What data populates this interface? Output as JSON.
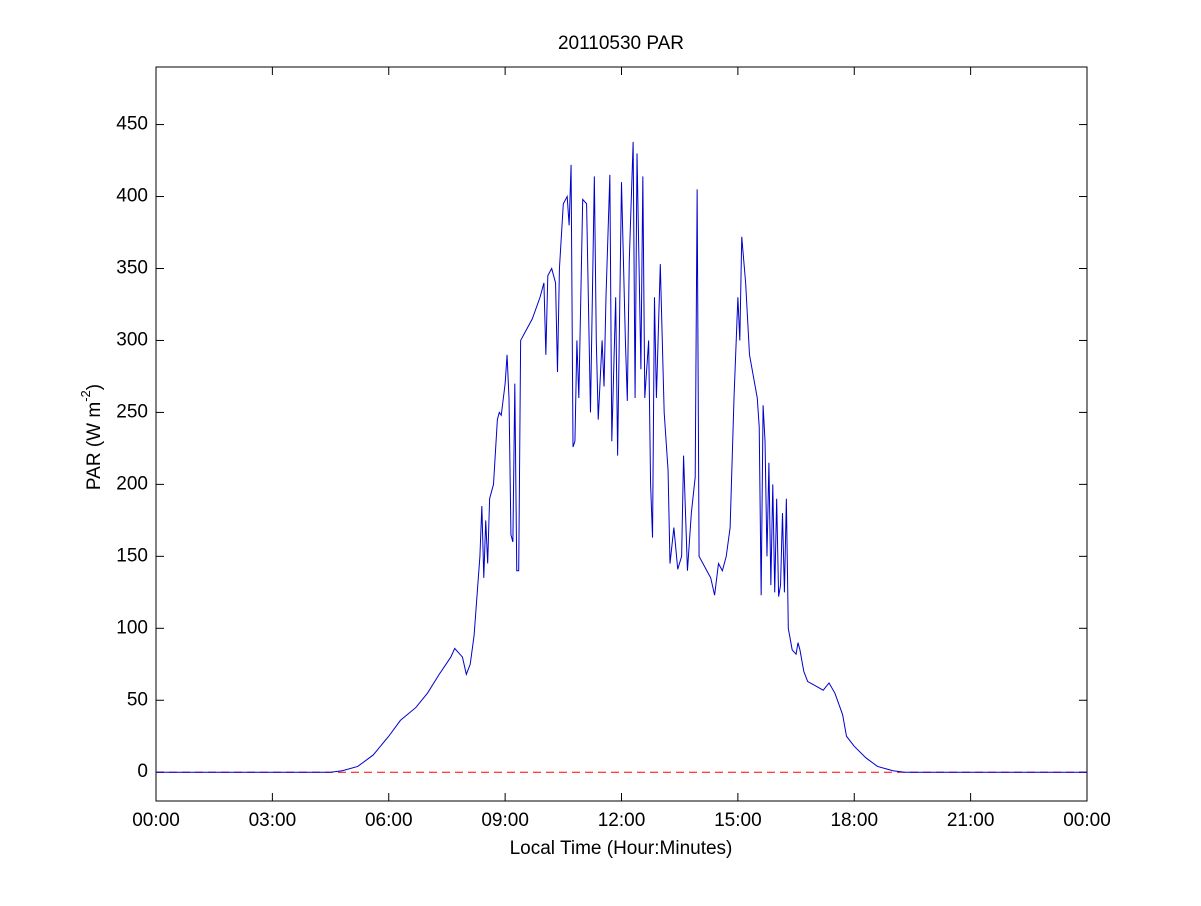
{
  "chart_data": {
    "type": "line",
    "title": "20110530 PAR",
    "x_label": "Local Time (Hour:Minutes)",
    "y_label": {
      "base": "PAR (W m",
      "sup": "-2",
      "end": ")"
    },
    "xlim": [
      0,
      24
    ],
    "xticks": [
      {
        "value": 0,
        "label": "00:00"
      },
      {
        "value": 3,
        "label": "03:00"
      },
      {
        "value": 6,
        "label": "06:00"
      },
      {
        "value": 9,
        "label": "09:00"
      },
      {
        "value": 12,
        "label": "12:00"
      },
      {
        "value": 15,
        "label": "15:00"
      },
      {
        "value": 18,
        "label": "18:00"
      },
      {
        "value": 21,
        "label": "21:00"
      },
      {
        "value": 24,
        "label": "00:00"
      }
    ],
    "ylim": [
      -20,
      490
    ],
    "yticks": [
      0,
      50,
      100,
      150,
      200,
      250,
      300,
      350,
      400,
      450
    ],
    "reference_line": {
      "value": 0,
      "color": "#ff0000",
      "style": "dashed"
    },
    "x": [
      0,
      4.5,
      4.8,
      5.2,
      5.6,
      6.0,
      6.3,
      6.7,
      7.0,
      7.3,
      7.6,
      7.7,
      7.9,
      8.0,
      8.1,
      8.2,
      8.35,
      8.4,
      8.45,
      8.5,
      8.55,
      8.6,
      8.7,
      8.8,
      8.85,
      8.9,
      9.0,
      9.05,
      9.1,
      9.15,
      9.2,
      9.25,
      9.3,
      9.35,
      9.4,
      9.5,
      9.7,
      9.9,
      10.0,
      10.05,
      10.1,
      10.2,
      10.3,
      10.35,
      10.4,
      10.5,
      10.6,
      10.65,
      10.7,
      10.75,
      10.8,
      10.85,
      10.9,
      11.0,
      11.1,
      11.2,
      11.3,
      11.35,
      11.4,
      11.5,
      11.55,
      11.6,
      11.7,
      11.75,
      11.85,
      11.9,
      12.0,
      12.1,
      12.15,
      12.2,
      12.3,
      12.35,
      12.4,
      12.5,
      12.55,
      12.6,
      12.7,
      12.75,
      12.8,
      12.85,
      12.9,
      13.0,
      13.1,
      13.2,
      13.25,
      13.35,
      13.45,
      13.55,
      13.6,
      13.7,
      13.8,
      13.9,
      13.95,
      14.0,
      14.1,
      14.2,
      14.3,
      14.4,
      14.5,
      14.6,
      14.7,
      14.8,
      14.9,
      15.0,
      15.05,
      15.1,
      15.2,
      15.3,
      15.4,
      15.5,
      15.55,
      15.6,
      15.65,
      15.7,
      15.75,
      15.8,
      15.85,
      15.9,
      15.95,
      16.0,
      16.05,
      16.1,
      16.15,
      16.2,
      16.25,
      16.3,
      16.4,
      16.5,
      16.55,
      16.6,
      16.7,
      16.8,
      17.0,
      17.2,
      17.35,
      17.5,
      17.7,
      17.8,
      18.0,
      18.3,
      18.6,
      19.0,
      19.3,
      24
    ],
    "series": [
      {
        "color": "#0000cc",
        "values": [
          0,
          0,
          1,
          4,
          12,
          25,
          36,
          45,
          55,
          68,
          80,
          86,
          80,
          68,
          75,
          95,
          150,
          185,
          135,
          175,
          145,
          190,
          200,
          245,
          250,
          248,
          270,
          290,
          260,
          165,
          160,
          270,
          140,
          140,
          300,
          305,
          315,
          330,
          340,
          290,
          345,
          350,
          340,
          278,
          350,
          395,
          400,
          380,
          422,
          226,
          230,
          300,
          260,
          398,
          395,
          250,
          414,
          300,
          245,
          300,
          268,
          330,
          415,
          230,
          330,
          220,
          410,
          300,
          258,
          355,
          438,
          260,
          430,
          280,
          414,
          260,
          300,
          200,
          163,
          330,
          260,
          353,
          250,
          210,
          145,
          170,
          141,
          150,
          220,
          140,
          180,
          205,
          405,
          150,
          145,
          140,
          135,
          123,
          145,
          140,
          150,
          170,
          260,
          330,
          300,
          372,
          340,
          290,
          275,
          260,
          240,
          123,
          255,
          230,
          150,
          215,
          130,
          200,
          125,
          190,
          122,
          130,
          180,
          125,
          190,
          100,
          85,
          82,
          90,
          85,
          70,
          63,
          60,
          57,
          62,
          55,
          40,
          25,
          18,
          10,
          4,
          1,
          0,
          0
        ]
      }
    ]
  }
}
